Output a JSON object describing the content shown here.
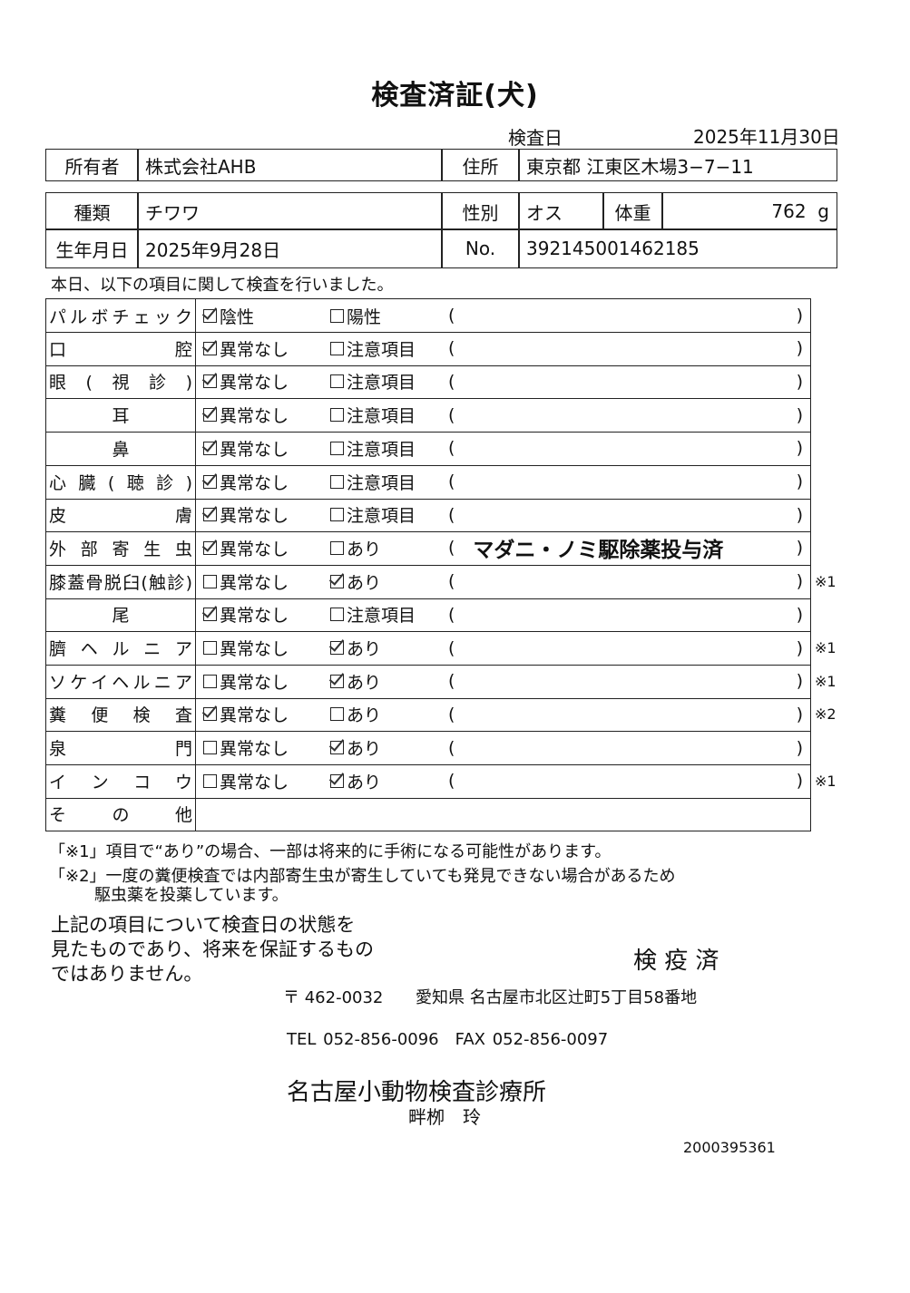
{
  "title": "検査済証(犬)",
  "inspection_date_label": "検査日",
  "inspection_date": "2025年11月30日",
  "owner": {
    "label": "所有者",
    "value": "株式会社AHB"
  },
  "address": {
    "label": "住所",
    "value": "東京都 江東区木場3−7−11"
  },
  "breed": {
    "label": "種類",
    "value": "チワワ"
  },
  "sex": {
    "label": "性別",
    "value": "オス"
  },
  "weight": {
    "label": "体重",
    "value": "762",
    "unit": "g"
  },
  "birthdate": {
    "label": "生年月日",
    "value": "2025年9月28日"
  },
  "number": {
    "label": "No.",
    "value": "392145001462185"
  },
  "intro": "本日、以下の項目に関して検査を行いました。",
  "items": [
    {
      "label": "パルボチェック",
      "opt1": "陰性",
      "opt2": "陽性",
      "checked": 1,
      "comment": "",
      "note": ""
    },
    {
      "label": "口腔",
      "opt1": "異常なし",
      "opt2": "注意項目",
      "checked": 1,
      "comment": "",
      "note": ""
    },
    {
      "label": "眼(視診)",
      "opt1": "異常なし",
      "opt2": "注意項目",
      "checked": 1,
      "comment": "",
      "note": ""
    },
    {
      "label": "耳",
      "opt1": "異常なし",
      "opt2": "注意項目",
      "checked": 1,
      "comment": "",
      "note": ""
    },
    {
      "label": "鼻",
      "opt1": "異常なし",
      "opt2": "注意項目",
      "checked": 1,
      "comment": "",
      "note": ""
    },
    {
      "label": "心臓(聴診)",
      "opt1": "異常なし",
      "opt2": "注意項目",
      "checked": 1,
      "comment": "",
      "note": ""
    },
    {
      "label": "皮膚",
      "opt1": "異常なし",
      "opt2": "注意項目",
      "checked": 1,
      "comment": "",
      "note": ""
    },
    {
      "label": "外部寄生虫",
      "opt1": "異常なし",
      "opt2": "あり",
      "checked": 1,
      "comment": "マダニ・ノミ駆除薬投与済",
      "note": ""
    },
    {
      "label": "膝蓋骨脱臼(触診)",
      "opt1": "異常なし",
      "opt2": "あり",
      "checked": 2,
      "comment": "",
      "note": "※1"
    },
    {
      "label": "尾",
      "opt1": "異常なし",
      "opt2": "注意項目",
      "checked": 1,
      "comment": "",
      "note": ""
    },
    {
      "label": "臍ヘルニア",
      "opt1": "異常なし",
      "opt2": "あり",
      "checked": 2,
      "comment": "",
      "note": "※1"
    },
    {
      "label": "ソケイヘルニア",
      "opt1": "異常なし",
      "opt2": "あり",
      "checked": 2,
      "comment": "",
      "note": "※1"
    },
    {
      "label": "糞便検査",
      "opt1": "異常なし",
      "opt2": "あり",
      "checked": 1,
      "comment": "",
      "note": "※2"
    },
    {
      "label": "泉門",
      "opt1": "異常なし",
      "opt2": "あり",
      "checked": 2,
      "comment": "",
      "note": ""
    },
    {
      "label": "インコウ",
      "opt1": "異常なし",
      "opt2": "あり",
      "checked": 2,
      "comment": "",
      "note": "※1"
    }
  ],
  "other_label": "その他",
  "paren_open": "(",
  "paren_close": ")",
  "footnote1": "「※1」項目で“あり”の場合、一部は将来的に手術になる可能性があります。",
  "footnote2a": "「※2」一度の糞便検査では内部寄生虫が寄生していても発見できない場合があるため",
  "footnote2b": "駆虫薬を投薬しています。",
  "disclaimer": [
    "上記の項目について検査日の状態を",
    "見たものであり、将来を保証するもの",
    "ではありません。"
  ],
  "stamp": "検 疫 済",
  "postal": "〒 462-0032",
  "clinic_address": "愛知県 名古屋市北区辻町5丁目58番地",
  "phone": "TEL 052-856-0096　FAX 052-856-0097",
  "clinic_name": "名古屋小動物検査診療所",
  "doctor": "畔栁　玲",
  "serial": "2000395361"
}
